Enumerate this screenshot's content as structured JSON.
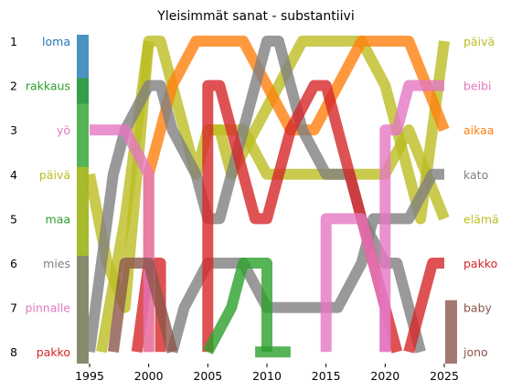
{
  "chart_data": {
    "type": "line",
    "title": "Yleisimmät sanat - substantiivi",
    "xlabel": "",
    "ylabel": "",
    "xlim": [
      1995,
      2025
    ],
    "ylim": [
      8,
      1
    ],
    "x_ticks": [
      1995,
      2000,
      2005,
      2010,
      2015,
      2020,
      2025
    ],
    "y_ticks": [
      1,
      2,
      3,
      4,
      5,
      6,
      7,
      8
    ],
    "grid": false,
    "left_labels": [
      {
        "rank": 1,
        "label": "loma",
        "color": "#1f77b4"
      },
      {
        "rank": 2,
        "label": "rakkaus",
        "color": "#2ca02c"
      },
      {
        "rank": 3,
        "label": "yö",
        "color": "#e377c2"
      },
      {
        "rank": 4,
        "label": "päivä",
        "color": "#bcbd22"
      },
      {
        "rank": 5,
        "label": "maa",
        "color": "#2ca02c"
      },
      {
        "rank": 6,
        "label": "mies",
        "color": "#7f7f7f"
      },
      {
        "rank": 7,
        "label": "pinnalle",
        "color": "#e377c2"
      },
      {
        "rank": 8,
        "label": "pakko",
        "color": "#d62728"
      }
    ],
    "right_labels": [
      {
        "rank": 1,
        "label": "päivä",
        "color": "#bcbd22"
      },
      {
        "rank": 2,
        "label": "beibi",
        "color": "#e377c2"
      },
      {
        "rank": 3,
        "label": "aikaa",
        "color": "#ff7f0e"
      },
      {
        "rank": 4,
        "label": "kato",
        "color": "#7f7f7f"
      },
      {
        "rank": 5,
        "label": "elämä",
        "color": "#bcbd22"
      },
      {
        "rank": 6,
        "label": "pakko",
        "color": "#d62728"
      },
      {
        "rank": 7,
        "label": "baby",
        "color": "#8c564b"
      },
      {
        "rank": 8,
        "label": "jono",
        "color": "#8c564b"
      }
    ],
    "series": [
      {
        "color": "#bcbd22",
        "points": [
          [
            1995,
            4
          ],
          [
            1996.5,
            6
          ],
          [
            1998,
            7
          ],
          [
            2000,
            1
          ],
          [
            2001,
            1
          ],
          [
            2003,
            3
          ],
          [
            2004,
            4
          ],
          [
            2005,
            3
          ],
          [
            2006,
            3
          ],
          [
            2007,
            4
          ],
          [
            2009,
            3
          ],
          [
            2011,
            2
          ],
          [
            2013,
            1
          ],
          [
            2016,
            1
          ],
          [
            2018,
            1
          ],
          [
            2020,
            2
          ],
          [
            2021,
            3
          ],
          [
            2022,
            4
          ],
          [
            2023,
            5
          ],
          [
            2025,
            1
          ]
        ]
      },
      {
        "color": "#bcbd22",
        "points": [
          [
            1996,
            8
          ],
          [
            1998,
            5
          ],
          [
            1999,
            3
          ],
          [
            2000,
            1
          ]
        ]
      },
      {
        "color": "#bcbd22",
        "points": [
          [
            2005,
            3
          ],
          [
            2007,
            3
          ],
          [
            2008,
            3
          ],
          [
            2010,
            4
          ],
          [
            2015,
            4
          ],
          [
            2020,
            4
          ],
          [
            2022,
            3
          ],
          [
            2025,
            5
          ]
        ]
      },
      {
        "color": "#ff7f0e",
        "points": [
          [
            2000,
            8
          ],
          [
            2000,
            4
          ],
          [
            2001,
            3
          ],
          [
            2002,
            2
          ],
          [
            2004,
            1
          ],
          [
            2006,
            1
          ],
          [
            2008,
            1
          ],
          [
            2010,
            2
          ],
          [
            2012,
            3
          ],
          [
            2014,
            3
          ],
          [
            2016,
            2
          ],
          [
            2018,
            1
          ],
          [
            2020,
            1
          ],
          [
            2022,
            1
          ],
          [
            2025,
            3
          ]
        ]
      },
      {
        "color": "#7f7f7f",
        "points": [
          [
            1995,
            8
          ],
          [
            1997,
            4
          ],
          [
            1998,
            3
          ],
          [
            2000,
            2
          ],
          [
            2001,
            2
          ],
          [
            2002,
            3
          ],
          [
            2004,
            4
          ],
          [
            2005,
            5
          ],
          [
            2006,
            5
          ],
          [
            2008,
            3
          ],
          [
            2009,
            2
          ],
          [
            2010,
            1
          ],
          [
            2011,
            1
          ],
          [
            2013,
            3
          ],
          [
            2015,
            4
          ],
          [
            2017,
            4
          ],
          [
            2018,
            5
          ],
          [
            2020,
            6
          ],
          [
            2021,
            6
          ],
          [
            2023,
            8
          ]
        ]
      },
      {
        "color": "#7f7f7f",
        "points": [
          [
            2002,
            8
          ],
          [
            2003,
            7
          ],
          [
            2005,
            6
          ],
          [
            2006,
            6
          ],
          [
            2008,
            6
          ],
          [
            2010,
            7
          ],
          [
            2012,
            7
          ],
          [
            2014,
            7
          ],
          [
            2016,
            7
          ],
          [
            2018,
            6
          ],
          [
            2019,
            5
          ],
          [
            2020,
            5
          ],
          [
            2022,
            5
          ],
          [
            2024,
            4
          ],
          [
            2025,
            4
          ]
        ]
      },
      {
        "color": "#d62728",
        "points": [
          [
            2005,
            8
          ],
          [
            2005,
            2
          ],
          [
            2006,
            2
          ],
          [
            2007,
            3
          ],
          [
            2008,
            4
          ],
          [
            2009,
            5
          ],
          [
            2010,
            5
          ],
          [
            2011,
            4
          ],
          [
            2012,
            3
          ],
          [
            2014,
            2
          ],
          [
            2015,
            2
          ],
          [
            2016,
            3
          ],
          [
            2017,
            4
          ],
          [
            2018,
            5
          ],
          [
            2019,
            6
          ],
          [
            2020,
            7
          ],
          [
            2021,
            8
          ]
        ]
      },
      {
        "color": "#d62728",
        "points": [
          [
            1999,
            8
          ],
          [
            2000,
            6
          ],
          [
            2001,
            6
          ],
          [
            2001,
            8
          ]
        ]
      },
      {
        "color": "#d62728",
        "points": [
          [
            2022,
            8
          ],
          [
            2023,
            7
          ],
          [
            2024,
            6
          ],
          [
            2025,
            6
          ]
        ]
      },
      {
        "color": "#e377c2",
        "points": [
          [
            1995,
            3
          ],
          [
            1996,
            3
          ],
          [
            1998,
            3
          ],
          [
            2000,
            4
          ],
          [
            2000,
            8
          ]
        ]
      },
      {
        "color": "#e377c2",
        "points": [
          [
            2015,
            8
          ],
          [
            2015,
            5
          ],
          [
            2016,
            5
          ],
          [
            2018,
            5
          ],
          [
            2019,
            6
          ],
          [
            2020,
            7
          ],
          [
            2020,
            8
          ]
        ]
      },
      {
        "color": "#e377c2",
        "points": [
          [
            2020,
            8
          ],
          [
            2020,
            3
          ],
          [
            2021,
            3
          ],
          [
            2022,
            2
          ],
          [
            2024,
            2
          ],
          [
            2025,
            2
          ]
        ]
      },
      {
        "color": "#2ca02c",
        "points": [
          [
            2005,
            8
          ],
          [
            2007,
            7
          ],
          [
            2008,
            6
          ],
          [
            2009,
            6
          ],
          [
            2010,
            6
          ],
          [
            2010,
            8
          ]
        ]
      },
      {
        "color": "#2ca02c",
        "points": [
          [
            2009,
            8
          ],
          [
            2010,
            8
          ],
          [
            2011,
            8
          ],
          [
            2012,
            8
          ]
        ]
      },
      {
        "color": "#8c564b",
        "points": [
          [
            1997,
            8
          ],
          [
            1998,
            6
          ],
          [
            1999,
            6
          ],
          [
            2000,
            6
          ],
          [
            2001,
            7
          ],
          [
            2002,
            8
          ]
        ]
      }
    ],
    "start_bars": [
      {
        "color": "#1f77b4",
        "from": 1,
        "to": 2
      },
      {
        "color": "#2ca02c",
        "from": 2,
        "to": 8
      },
      {
        "color": "#bcbd22",
        "from": 4,
        "to": 8
      },
      {
        "color": "#7f7f7f",
        "from": 6,
        "to": 8
      }
    ],
    "end_bars": [
      {
        "color": "#8c564b",
        "from": 7,
        "to": 8
      }
    ]
  }
}
